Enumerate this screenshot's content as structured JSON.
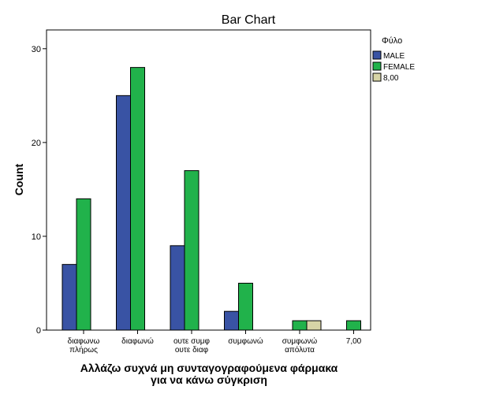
{
  "chart_data": {
    "type": "bar",
    "title": "Bar Chart",
    "xlabel": "Αλλάζω συχνά μη συνταγογραφούμενα φάρμακα για να κάνω σύγκριση",
    "xlabel_lines": [
      "Αλλάζω συχνά μη συνταγογραφούμενα φάρμακα",
      "για να κάνω σύγκριση"
    ],
    "ylabel": "Count",
    "ylim": [
      0,
      32
    ],
    "yticks": [
      0,
      10,
      20,
      30
    ],
    "grid": false,
    "legend_position": "right",
    "legend_title": "Φύλο",
    "categories": [
      [
        "διαφωνω",
        "πλήρως"
      ],
      [
        "διαφωνώ"
      ],
      [
        "ουτε συμφ",
        "ουτε διαφ"
      ],
      [
        "συμφωνώ"
      ],
      [
        "συμφωνώ",
        "απόλυτα"
      ],
      [
        "7,00"
      ]
    ],
    "series": [
      {
        "name": "MALE",
        "color": "#3953a4",
        "values": [
          7,
          25,
          9,
          2,
          0,
          0
        ]
      },
      {
        "name": "FEMALE",
        "color": "#21b24b",
        "values": [
          14,
          28,
          17,
          5,
          1,
          1
        ]
      },
      {
        "name": "8,00",
        "color": "#d7d4a6",
        "values": [
          0,
          0,
          0,
          0,
          1,
          0
        ]
      }
    ]
  }
}
